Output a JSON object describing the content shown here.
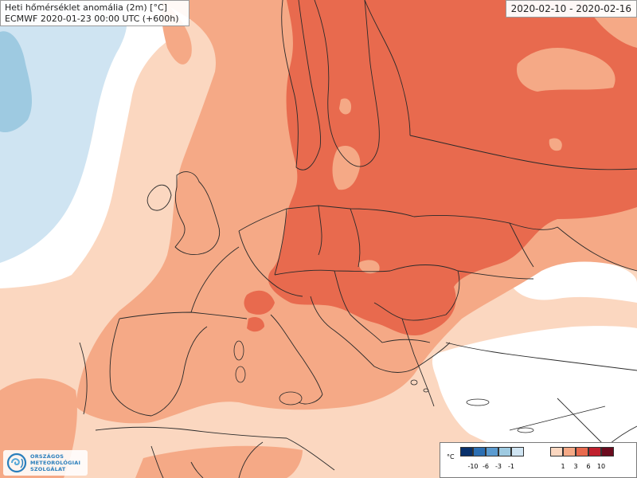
{
  "header": {
    "title": "Heti hőmérséklet anomália (2m) [°C]",
    "subtitle": "ECMWF 2020-01-23 00:00 UTC (+600h)",
    "date_range": "2020-02-10 - 2020-02-16"
  },
  "legend": {
    "unit": "°C",
    "negative": {
      "labels": [
        "-10",
        "-6",
        "-3",
        "-1"
      ],
      "colors": [
        "#08306b",
        "#2c6fb3",
        "#5b9bd0",
        "#9ecae1",
        "#cfe4f2"
      ]
    },
    "positive": {
      "labels": [
        "1",
        "3",
        "6",
        "10"
      ],
      "colors": [
        "#fbd7c0",
        "#f5a986",
        "#e86a4e",
        "#c0202d",
        "#6b0b1e"
      ]
    }
  },
  "logo": {
    "lines": [
      "ORSZÁGOS",
      "METEOROLÓGIAI",
      "SZOLGÁLAT"
    ],
    "icon": "swirl-logo-icon"
  },
  "map": {
    "region": "Europe",
    "colors": {
      "ocean_neutral": "#ffffff",
      "anomaly_cold_light": "#cfe4f2",
      "anomaly_cold": "#9ecae1",
      "anomaly_plus1": "#fbd7c0",
      "anomaly_plus3": "#f5a986",
      "anomaly_plus6": "#e86a4e",
      "border_line": "#2a2a2a"
    }
  }
}
